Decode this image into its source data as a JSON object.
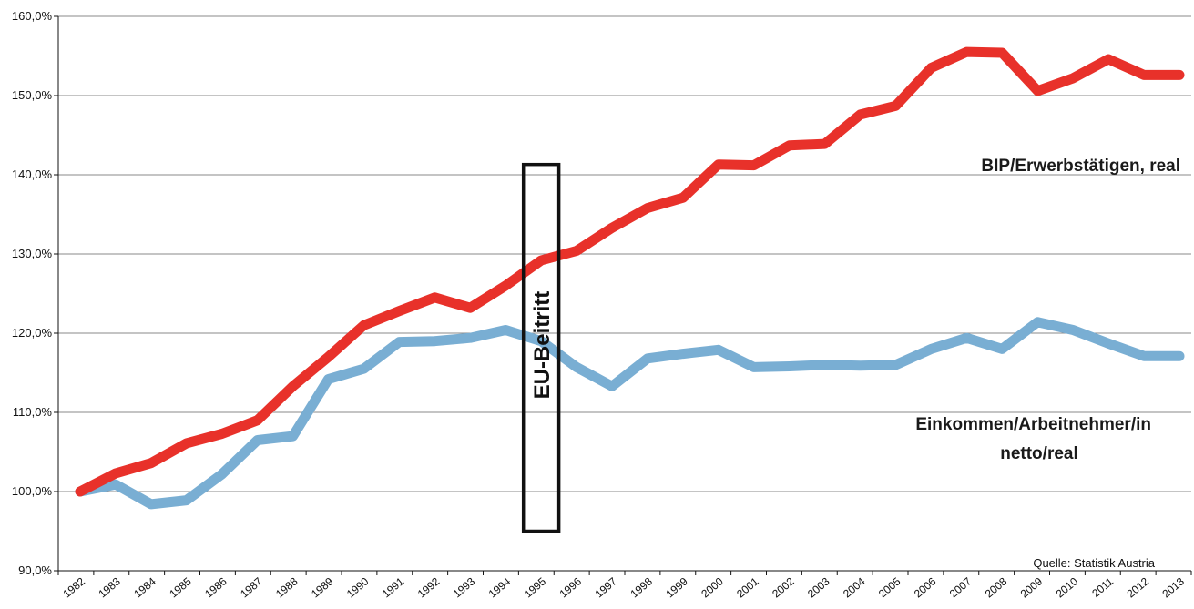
{
  "chart_data": {
    "type": "line",
    "title": "",
    "xlabel": "",
    "ylabel": "",
    "x": [
      "1982",
      "1983",
      "1984",
      "1985",
      "1986",
      "1987",
      "1988",
      "1989",
      "1990",
      "1991",
      "1992",
      "1993",
      "1994",
      "1995",
      "1996",
      "1997",
      "1998",
      "1999",
      "2000",
      "2001",
      "2002",
      "2003",
      "2004",
      "2005",
      "2006",
      "2007",
      "2008",
      "2009",
      "2010",
      "2011",
      "2012",
      "2013"
    ],
    "ylim": [
      90,
      160
    ],
    "yticks": [
      "90,0%",
      "100,0%",
      "110,0%",
      "120,0%",
      "130,0%",
      "140,0%",
      "150,0%",
      "160,0%"
    ],
    "grid": true,
    "series": [
      {
        "name": "BIP/Erwerbstätigen, real",
        "color": "#e8312a",
        "values": [
          100.0,
          102.3,
          103.6,
          106.1,
          107.3,
          109.0,
          113.3,
          117.0,
          121.0,
          122.8,
          124.5,
          123.2,
          126.0,
          129.2,
          130.4,
          133.3,
          135.8,
          137.1,
          141.3,
          141.2,
          143.7,
          143.9,
          147.6,
          148.7,
          153.5,
          155.5,
          155.4,
          150.6,
          152.2,
          154.6,
          152.6,
          152.6
        ]
      },
      {
        "name": "Einkommen/Arbeitnehmer/in netto/real",
        "color": "#79aed3",
        "values": [
          100.0,
          100.9,
          98.4,
          98.9,
          102.2,
          106.5,
          107.0,
          114.2,
          115.5,
          118.9,
          119.0,
          119.4,
          120.4,
          119.0,
          115.7,
          113.3,
          116.8,
          117.4,
          117.9,
          115.7,
          115.8,
          116.0,
          115.9,
          116.0,
          118.0,
          119.4,
          118.0,
          121.4,
          120.4,
          118.7,
          117.1,
          117.1
        ]
      }
    ],
    "series_labels": {
      "bip": "BIP/Erwerbstätigen, real",
      "einkommen_line1": "Einkommen/Arbeitnehmer/in",
      "einkommen_line2": "netto/real"
    },
    "annotation": {
      "text": "EU-Beitritt",
      "x_from": "1994.5",
      "x_to": "1995.5",
      "y_from": 95,
      "y_to": 141.3
    },
    "source": "Quelle: Statistik Austria"
  }
}
